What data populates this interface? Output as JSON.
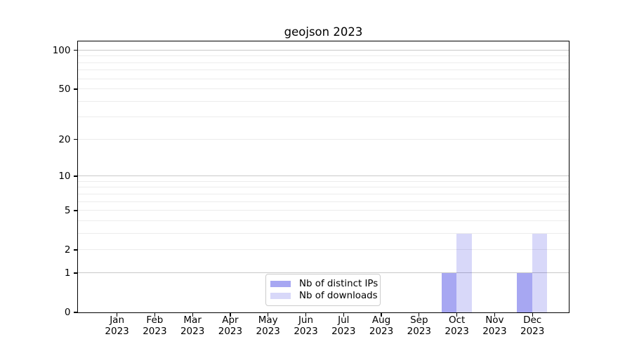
{
  "chart_data": {
    "type": "bar",
    "title": "geojson 2023",
    "categories": [
      "Jan",
      "Feb",
      "Mar",
      "Apr",
      "May",
      "Jun",
      "Jul",
      "Aug",
      "Sep",
      "Oct",
      "Nov",
      "Dec"
    ],
    "category_year": "2023",
    "series": [
      {
        "name": "Nb of distinct IPs",
        "color": "rgba(10,10,220,0.36)",
        "values": [
          0,
          0,
          0,
          0,
          0,
          0,
          0,
          0,
          0,
          1,
          0,
          1
        ]
      },
      {
        "name": "Nb of downloads",
        "color": "rgba(10,10,220,0.16)",
        "values": [
          0,
          0,
          0,
          0,
          0,
          0,
          0,
          0,
          0,
          3,
          0,
          3
        ]
      }
    ],
    "yscale": "log1p",
    "yticks": [
      0,
      1,
      2,
      5,
      10,
      20,
      50,
      100
    ],
    "ytick_labels": [
      "0",
      "1",
      "2",
      "5",
      "10",
      "20",
      "50",
      "100"
    ],
    "major_gridlines": [
      1,
      10,
      100
    ],
    "minor_gridlines": [
      2,
      3,
      4,
      5,
      6,
      7,
      8,
      9,
      20,
      30,
      40,
      50,
      60,
      70,
      80,
      90
    ],
    "ylim": [
      0,
      117
    ],
    "grid": "horizontal",
    "legend_position": "inside-bottom-center",
    "colors": {
      "spine": "#000000",
      "major_grid": "#c9c9c9",
      "minor_grid": "#ececec",
      "legend_border": "#cccccc",
      "background": "#ffffff"
    }
  }
}
